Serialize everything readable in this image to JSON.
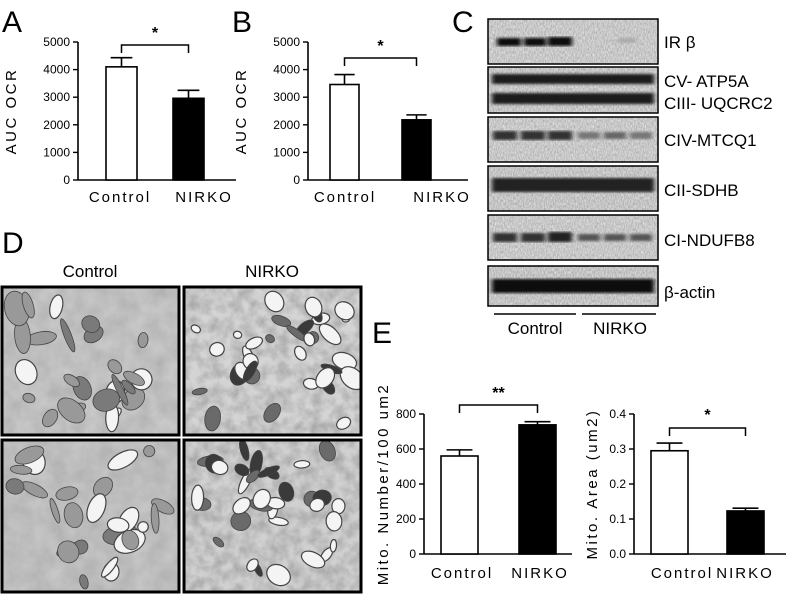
{
  "panel_labels": {
    "A": "A",
    "B": "B",
    "C": "C",
    "D": "D",
    "E": "E"
  },
  "chart_data": [
    {
      "panel": "A",
      "type": "bar",
      "categories": [
        "Control",
        "NIRKO"
      ],
      "values": [
        4100,
        2960
      ],
      "errors": [
        330,
        290
      ],
      "fill": [
        "#ffffff",
        "#000000"
      ],
      "ylabel": "AUC OCR",
      "ylim": [
        0,
        5000
      ],
      "yticks": [
        0,
        1000,
        2000,
        3000,
        4000,
        5000
      ],
      "ytick_labels": [
        "0",
        "1000",
        "2000",
        "3000",
        "4000",
        "5000"
      ],
      "significance": "*"
    },
    {
      "panel": "B",
      "type": "bar",
      "categories": [
        "Control",
        "NIRKO"
      ],
      "values": [
        3460,
        2180
      ],
      "errors": [
        360,
        180
      ],
      "fill": [
        "#ffffff",
        "#000000"
      ],
      "ylabel": "AUC OCR",
      "ylim": [
        0,
        5000
      ],
      "yticks": [
        0,
        1000,
        2000,
        3000,
        4000,
        5000
      ],
      "ytick_labels": [
        "0",
        "1000",
        "2000",
        "3000",
        "4000",
        "5000"
      ],
      "significance": "*"
    },
    {
      "panel": "E-left",
      "type": "bar",
      "categories": [
        "Control",
        "NIRKO"
      ],
      "values": [
        560,
        738
      ],
      "errors": [
        35,
        18
      ],
      "fill": [
        "#ffffff",
        "#000000"
      ],
      "ylabel": "Mito. Number/100 um2",
      "ylim": [
        0,
        800
      ],
      "yticks": [
        0,
        200,
        400,
        600,
        800
      ],
      "ytick_labels": [
        "0",
        "200",
        "400",
        "600",
        "800"
      ],
      "significance": "**"
    },
    {
      "panel": "E-right",
      "type": "bar",
      "categories": [
        "Control",
        "NIRKO"
      ],
      "values": [
        0.295,
        0.123
      ],
      "errors": [
        0.022,
        0.008
      ],
      "fill": [
        "#ffffff",
        "#000000"
      ],
      "ylabel": "Mito. Area (um2)",
      "ylim": [
        0,
        0.4
      ],
      "yticks": [
        0,
        0.1,
        0.2,
        0.3,
        0.4
      ],
      "ytick_labels": [
        "0.0",
        "0.1",
        "0.2",
        "0.3",
        "0.4"
      ],
      "significance": "*"
    }
  ],
  "blot": {
    "labels": [
      {
        "text": "IR β"
      },
      {
        "text": "CV- ATP5A"
      },
      {
        "text": "CIII- UQCRC2"
      },
      {
        "text": "CIV-MTCQ1"
      },
      {
        "text": "CII-SDHB"
      },
      {
        "text": "CI-NDUFB8"
      },
      {
        "text": "β-actin"
      }
    ],
    "groups": [
      "Control",
      "NIRKO"
    ]
  },
  "em_panel": {
    "headers": [
      "Control",
      "NIRKO"
    ]
  }
}
